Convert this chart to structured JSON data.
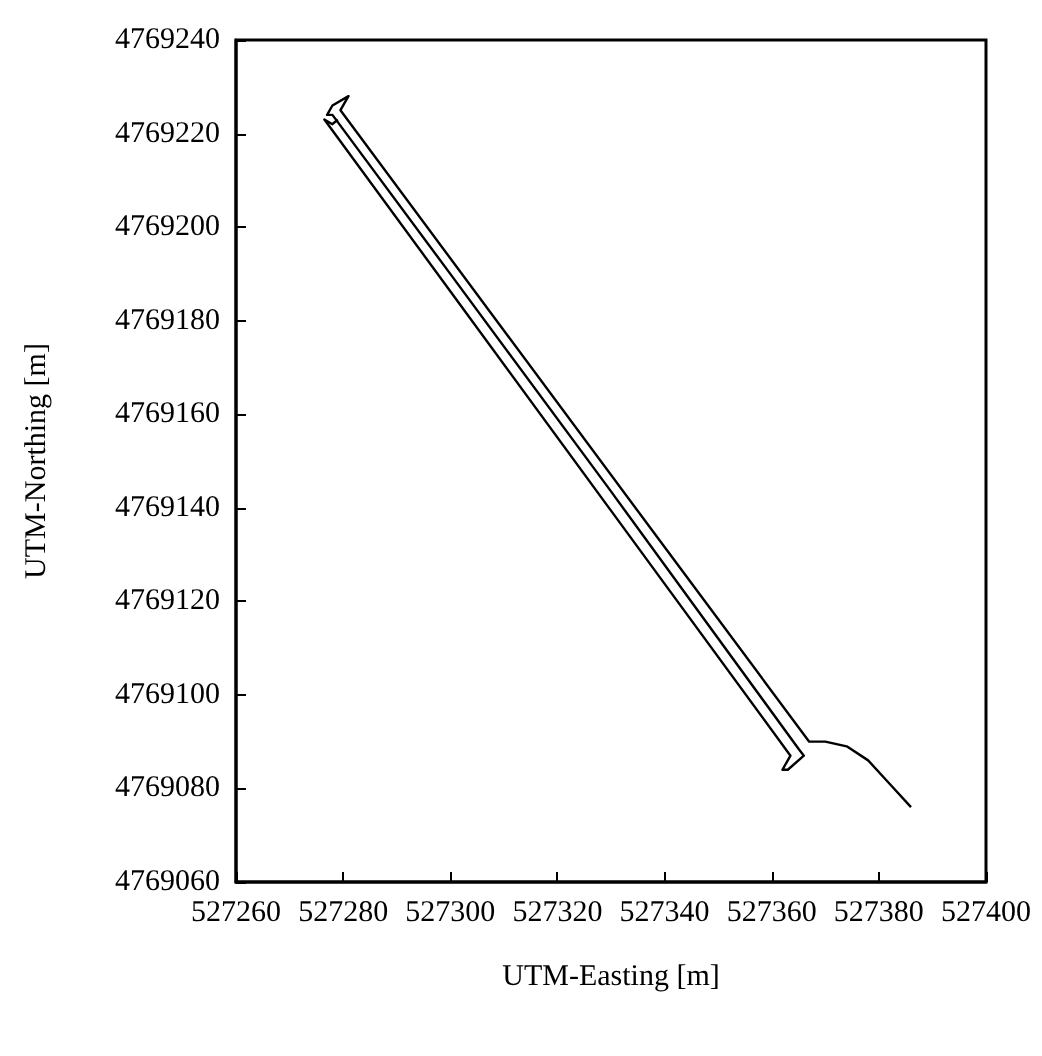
{
  "chart_data": {
    "type": "line",
    "xlabel": "UTM-Easting [m]",
    "ylabel": "UTM-Northing [m]",
    "series": [
      {
        "color": "#000000",
        "x": [
          527386,
          527382,
          527378,
          527374,
          527370,
          527367,
          527340,
          527310,
          527279.5,
          527281,
          527278,
          527277,
          527278,
          527300,
          527330,
          527365,
          527366,
          527363,
          527362,
          527363.5,
          527330,
          527300,
          527276.5,
          527278,
          527279
        ],
        "values": [
          4769076,
          4769081,
          4769086,
          4769089,
          4769090,
          4769090,
          4769131.6,
          4769177.9,
          4769225,
          4769228,
          4769226,
          4769224,
          4769224,
          4769190,
          4769143.5,
          4769088.5,
          4769087,
          4769084,
          4769084,
          4769087,
          4769139.4,
          4769186.3,
          4769223,
          4769222,
          4769223
        ]
      }
    ],
    "xlim": [
      527260,
      527400
    ],
    "xticks": [
      527260,
      527280,
      527300,
      527320,
      527340,
      527360,
      527380,
      527400
    ],
    "ylim": [
      4769060,
      4769240
    ],
    "yticks": [
      4769060,
      4769080,
      4769100,
      4769120,
      4769140,
      4769160,
      4769180,
      4769200,
      4769220,
      4769240
    ],
    "grid": false,
    "marker": "none",
    "line_style": "solid"
  }
}
